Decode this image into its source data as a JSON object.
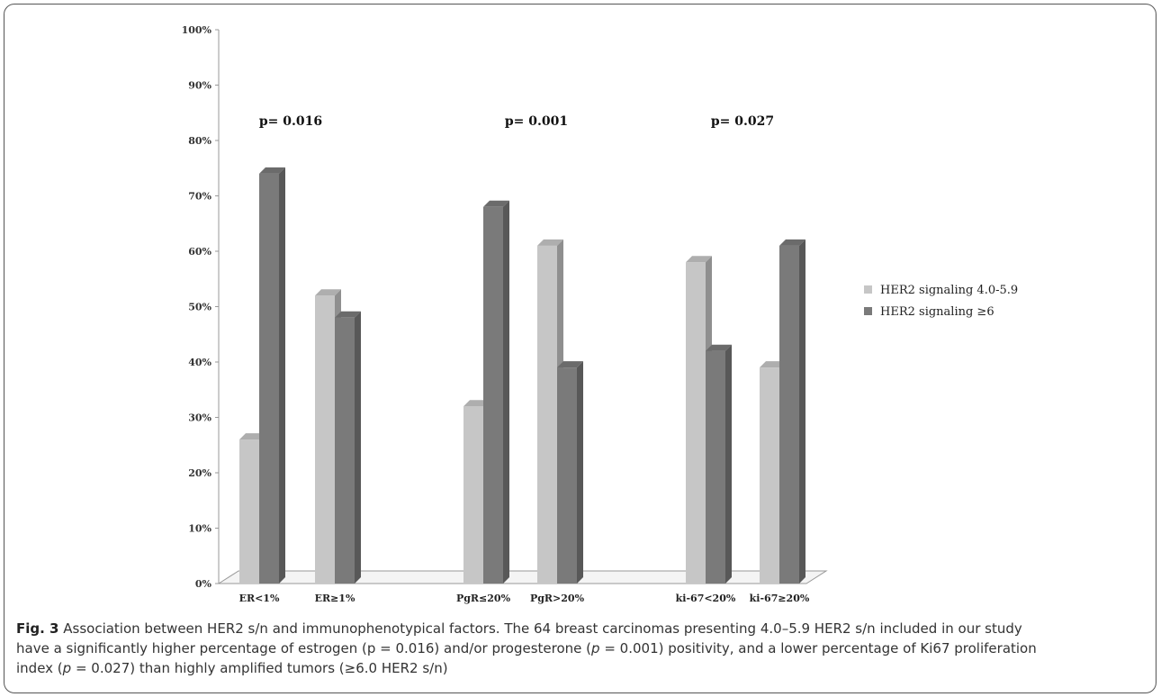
{
  "chart_data": {
    "type": "bar",
    "categories": [
      "ER<1%",
      "ER≥1%",
      "PgR≤20%",
      "PgR>20%",
      "ki-67<20%",
      "ki-67≥20%"
    ],
    "series": [
      {
        "name": "HER2 signaling 4.0-5.9",
        "values": [
          26,
          52,
          32,
          61,
          58,
          39
        ],
        "color": "#c6c6c6"
      },
      {
        "name": "HER2 signaling ≥6",
        "values": [
          74,
          48,
          68,
          39,
          42,
          61
        ],
        "color": "#7a7a7a"
      }
    ],
    "ylim": [
      0,
      100
    ],
    "yticks": [
      "0%",
      "10%",
      "20%",
      "30%",
      "40%",
      "50%",
      "60%",
      "70%",
      "80%",
      "90%",
      "100%"
    ],
    "annotations": [
      "p= 0.016",
      "p= 0.001",
      "p= 0.027"
    ],
    "legend_position": "right",
    "grid": false
  },
  "caption": {
    "label": "Fig. 3",
    "p1": " Association between HER2 s/n and immunophenotypical factors. The 64 breast carcinomas presenting 4.0–5.9 HER2 s/n included in our study",
    "p2a": "have a significantly higher percentage of estrogen (p = 0.016) and/or progesterone (",
    "p2i": "p",
    "p2b": " = 0.001) positivity, and a lower percentage of Ki67 proliferation",
    "p3a": "index (",
    "p3i": "p",
    "p3b": " = 0.027) than highly amplified tumors (≥6.0 HER2 s/n)"
  }
}
